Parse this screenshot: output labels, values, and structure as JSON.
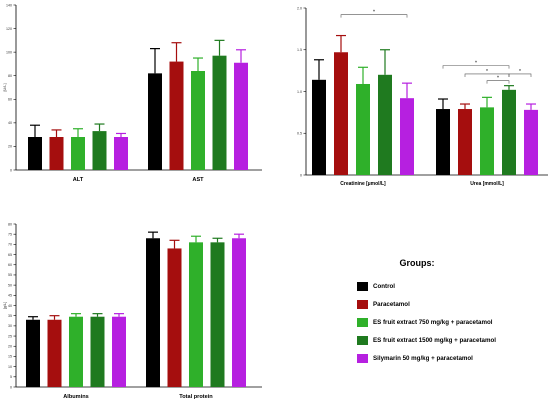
{
  "colors": {
    "Control": "#000000",
    "Paracetamol": "#a50e0e",
    "ES fruit extract 750 mg/kg + paracetamol": "#2fb02a",
    "ES fruit extract 1500 mg/kg + paracetamol": "#1f7a1f",
    "Silymarin 50 mg/kg + paracetamol": "#b620e0"
  },
  "legend": {
    "title": "Groups:",
    "items": [
      "Control",
      "Paracetamol",
      "ES fruit extract 750 mg/kg + paracetamol",
      "ES fruit extract 1500 mg/kg + paracetamol",
      "Silymarin 50 mg/kg + paracetamol"
    ]
  },
  "chart_data": [
    {
      "type": "bar",
      "id": "enzymes",
      "ylabel": "[U/L]",
      "ylim": [
        0,
        140
      ],
      "yticks": [
        0,
        20,
        40,
        60,
        80,
        100,
        120,
        140
      ],
      "yticklabels": [
        "0",
        "20",
        "40",
        "60",
        "80",
        "100",
        "120",
        "140"
      ],
      "categories": [
        "ALT",
        "AST"
      ],
      "series": [
        {
          "name": "Control",
          "values": [
            28,
            82
          ],
          "errors": [
            10,
            21
          ]
        },
        {
          "name": "Paracetamol",
          "values": [
            28,
            92
          ],
          "errors": [
            6,
            16
          ]
        },
        {
          "name": "ES fruit extract 750 mg/kg + paracetamol",
          "values": [
            28,
            84
          ],
          "errors": [
            7,
            11
          ]
        },
        {
          "name": "ES fruit extract 1500 mg/kg + paracetamol",
          "values": [
            33,
            97
          ],
          "errors": [
            6,
            13
          ]
        },
        {
          "name": "Silymarin 50 mg/kg + paracetamol",
          "values": [
            28,
            91
          ],
          "errors": [
            3,
            11
          ]
        }
      ]
    },
    {
      "type": "bar",
      "id": "renal",
      "ylabel": "",
      "ylim": [
        0,
        2
      ],
      "yticks": [
        0,
        0.5,
        1.0,
        1.5,
        2.0
      ],
      "yticklabels": [
        "0",
        "0.5",
        "1.0",
        "1.5",
        "2.0"
      ],
      "categories": [
        "Creatinine [µmol/L]",
        "Urea [mmol/L]"
      ],
      "series": [
        {
          "name": "Control",
          "values": [
            1.14,
            0.79
          ],
          "errors": [
            0.24,
            0.12
          ]
        },
        {
          "name": "Paracetamol",
          "values": [
            1.47,
            0.79
          ],
          "errors": [
            0.2,
            0.06
          ]
        },
        {
          "name": "ES fruit extract 750 mg/kg + paracetamol",
          "values": [
            1.09,
            0.81
          ],
          "errors": [
            0.2,
            0.12
          ]
        },
        {
          "name": "ES fruit extract 1500 mg/kg + paracetamol",
          "values": [
            1.2,
            1.02
          ],
          "errors": [
            0.3,
            0.05
          ]
        },
        {
          "name": "Silymarin 50 mg/kg + paracetamol",
          "values": [
            0.92,
            0.78
          ],
          "errors": [
            0.18,
            0.07
          ]
        }
      ],
      "annotations": [
        {
          "label": "*",
          "category": 0,
          "from": 1,
          "to": 4,
          "y": 1.92
        },
        {
          "label": "*",
          "category": 1,
          "from": 0,
          "to": 3,
          "y": 1.31
        },
        {
          "label": "*",
          "category": 1,
          "from": 1,
          "to": 3,
          "y": 1.21
        },
        {
          "label": "*",
          "category": 1,
          "from": 2,
          "to": 3,
          "y": 1.13
        },
        {
          "label": "*",
          "category": 1,
          "from": 3,
          "to": 4,
          "y": 1.21
        }
      ]
    },
    {
      "type": "bar",
      "id": "proteins",
      "ylabel": "[g/L]",
      "ylim": [
        0,
        80
      ],
      "yticks": [
        0,
        5,
        10,
        15,
        20,
        25,
        30,
        35,
        40,
        45,
        50,
        55,
        60,
        65,
        70,
        75,
        80
      ],
      "yticklabels": [
        "0",
        "5",
        "10",
        "15",
        "20",
        "25",
        "30",
        "35",
        "40",
        "45",
        "50",
        "55",
        "60",
        "65",
        "70",
        "75",
        "80"
      ],
      "categories": [
        "Albumins",
        "Total protein"
      ],
      "series": [
        {
          "name": "Control",
          "values": [
            33,
            73
          ],
          "errors": [
            1.5,
            3
          ]
        },
        {
          "name": "Paracetamol",
          "values": [
            33,
            68
          ],
          "errors": [
            2,
            4
          ]
        },
        {
          "name": "ES fruit extract 750 mg/kg + paracetamol",
          "values": [
            34.5,
            71
          ],
          "errors": [
            1.5,
            3
          ]
        },
        {
          "name": "ES fruit extract 1500 mg/kg + paracetamol",
          "values": [
            34.5,
            71
          ],
          "errors": [
            1.5,
            2
          ]
        },
        {
          "name": "Silymarin 50 mg/kg + paracetamol",
          "values": [
            34.5,
            73
          ],
          "errors": [
            1.5,
            2
          ]
        }
      ]
    }
  ]
}
